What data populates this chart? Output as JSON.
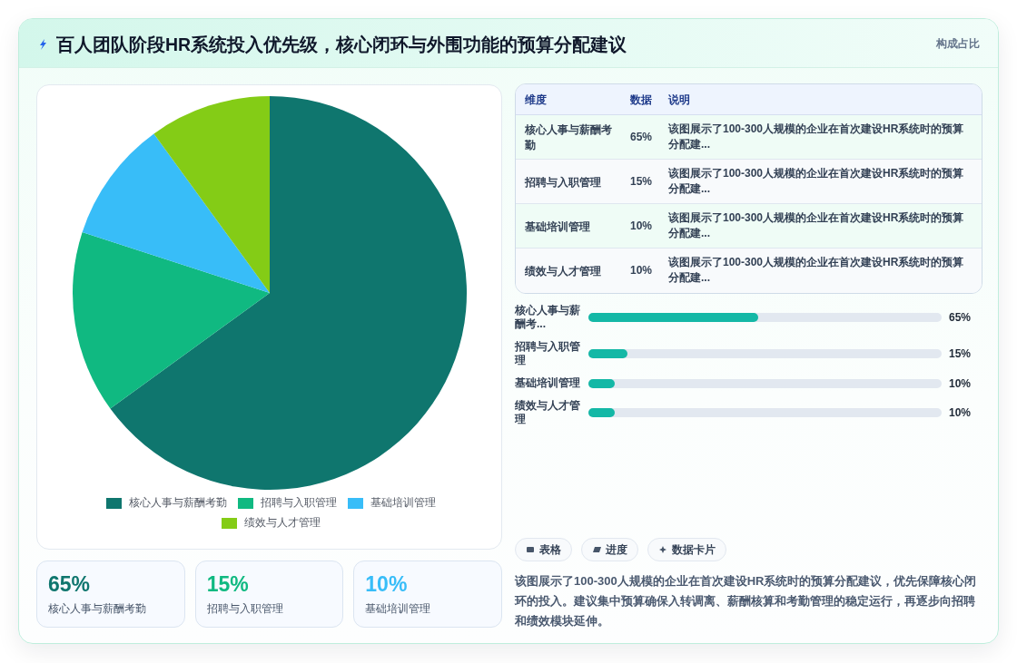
{
  "chart_data": [
    {
      "type": "other",
      "title": "百人团队阶段HR系统投入优先级，核心闭环与外围功能的预算分配建议",
      "subtitle": "构成占比"
    },
    {
      "type": "pie",
      "categories": [
        "核心人事与薪酬考勤",
        "招聘与入职管理",
        "基础培训管理",
        "绩效与人才管理"
      ],
      "values": [
        65,
        15,
        10,
        10
      ],
      "colors": [
        "#0f766e",
        "#10b981",
        "#38bdf8",
        "#84cc16"
      ],
      "legend": "bottom"
    },
    {
      "type": "other",
      "categories": [
        "核心人事与薪酬考勤",
        "招聘与入职管理",
        "基础培训管理",
        "绩效与人才管理"
      ],
      "value_labels": [
        "65%",
        "15%",
        "10%",
        "10%"
      ],
      "annotations": [
        "维度",
        "数据",
        "说明",
        "该图展示了100-300人规模的企业在首次建设HR系统时的预算分配建...",
        "该图展示了100-300人规模的企业在首次建设HR系统时的预算分配建...",
        "该图展示了100-300人规模的企业在首次建设HR系统时的预算分配建...",
        "该图展示了100-300人规模的企业在首次建设HR系统时的预算分配建..."
      ]
    },
    {
      "type": "bar",
      "orientation": "horizontal",
      "categories": [
        "核心人事与薪酬考...",
        "招聘与入职管理",
        "基础培训管理",
        "绩效与人才管理"
      ],
      "values": [
        65,
        15,
        10,
        10
      ],
      "value_labels": [
        "65%",
        "15%",
        "10%",
        "10%"
      ],
      "color": "#14b8a6",
      "xlim": [
        0,
        135
      ]
    },
    {
      "type": "other",
      "categories": [
        "核心人事与薪酬考勤",
        "招聘与入职管理",
        "基础培训管理"
      ],
      "value_labels": [
        "65%",
        "15%",
        "10%"
      ]
    },
    {
      "type": "other",
      "annotations": [
        "表格",
        "进度",
        "数据卡片",
        "该图展示了100-300人规模的企业在首次建设HR系统时的预算分配建议，优先保障核心闭环的投入。建议集中预算确保入转调离、薪酬核算和考勤管理的稳定运行，再逐步向招聘和绩效模块延伸。"
      ]
    }
  ]
}
